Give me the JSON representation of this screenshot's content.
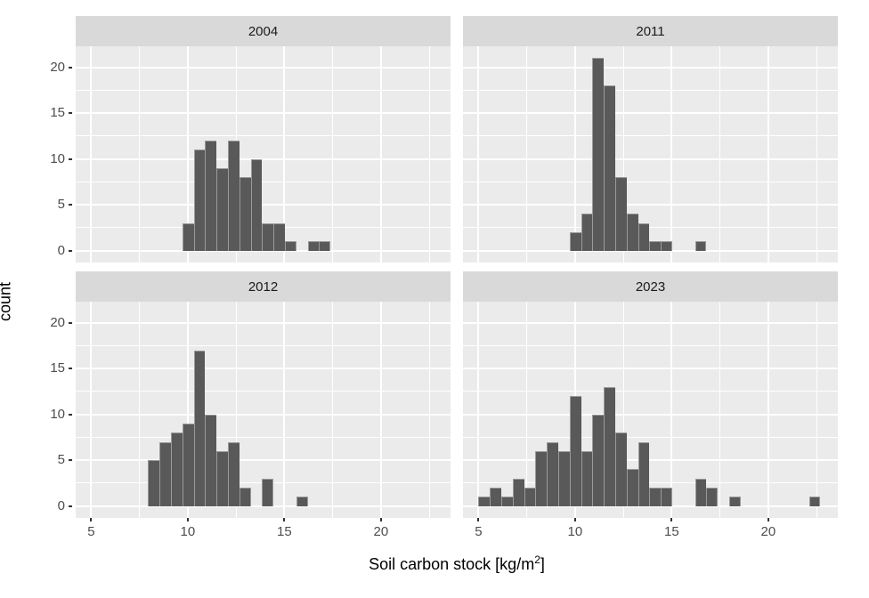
{
  "titles": {
    "x_pre": "Soil carbon stock [kg/m",
    "x_sup": "2",
    "x_post": "]",
    "y": "count"
  },
  "style": {
    "figure_bg": "#ffffff",
    "panel_bg": "#ebebeb",
    "strip_bg": "#d9d9d9",
    "strip_text_color": "#1a1a1a",
    "bar_fill": "#595959",
    "bar_border": "#9a9a9a",
    "gridline_color": "#ffffff",
    "axis_text_color": "#4d4d4d",
    "axis_title_color": "#000000",
    "tick_mark_color": "#333333"
  },
  "chart_data": {
    "type": "bar",
    "subtype": "faceted-histogram",
    "title": "",
    "xlabel": "Soil carbon stock [kg/m²]",
    "ylabel": "count",
    "legend": "none",
    "grid": "on",
    "x_ticks": [
      5,
      10,
      15,
      20
    ],
    "y_ticks": [
      0,
      5,
      10,
      15,
      20
    ],
    "x_minor_gridlines": [
      7.5,
      12.5,
      17.5,
      22.5
    ],
    "y_minor_gridlines": [
      2.5,
      7.5,
      12.5,
      17.5
    ],
    "x_domain": [
      4.2,
      23.6
    ],
    "y_domain": [
      -1.3,
      22.3
    ],
    "bin_width": 0.59,
    "facets": [
      {
        "label": "2004",
        "first_bin_x": 9.72,
        "counts": [
          3,
          11,
          12,
          9,
          12,
          8,
          10,
          3,
          3,
          1,
          0,
          1,
          1
        ]
      },
      {
        "label": "2011",
        "first_bin_x": 9.72,
        "counts": [
          2,
          4,
          21,
          18,
          8,
          4,
          3,
          1,
          1,
          0,
          0,
          1
        ]
      },
      {
        "label": "2012",
        "first_bin_x": 7.95,
        "counts": [
          5,
          7,
          8,
          9,
          17,
          10,
          6,
          7,
          2,
          0,
          3,
          0,
          0,
          1
        ]
      },
      {
        "label": "2023",
        "first_bin_x": 5.0,
        "counts": [
          1,
          2,
          1,
          3,
          2,
          6,
          7,
          6,
          12,
          6,
          10,
          13,
          8,
          4,
          7,
          2,
          2,
          0,
          0,
          3,
          2,
          0,
          1,
          0,
          0,
          0,
          0,
          0,
          0,
          1
        ]
      }
    ]
  }
}
